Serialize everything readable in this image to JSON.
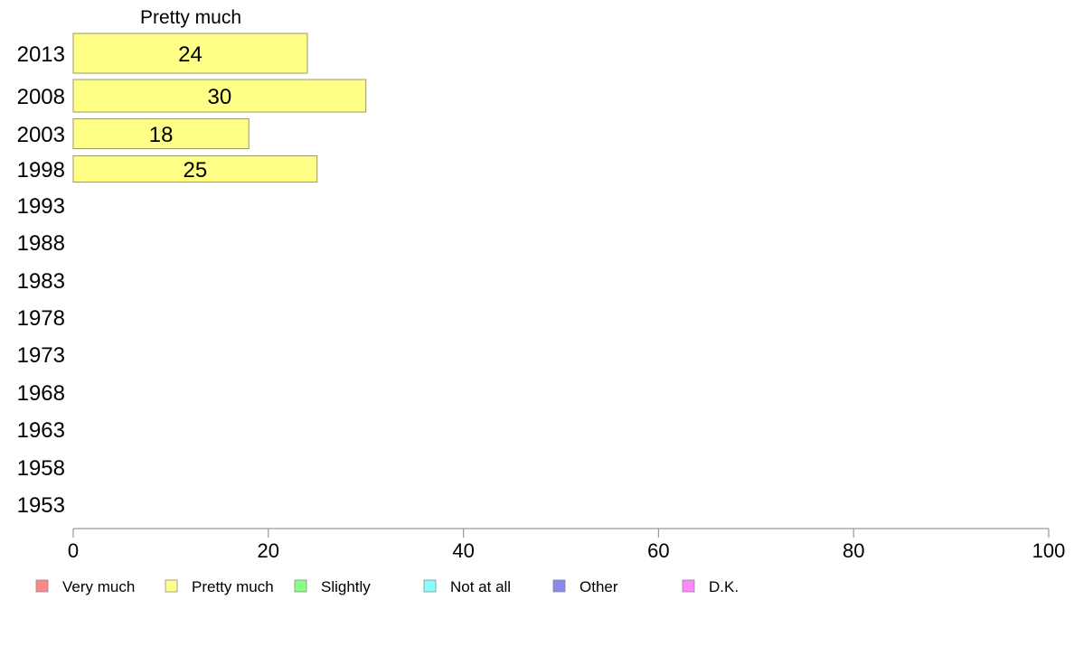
{
  "chart_data": {
    "type": "bar",
    "orientation": "horizontal",
    "title": "",
    "xlabel": "",
    "ylabel": "",
    "xlim": [
      0,
      100
    ],
    "x_ticks": [
      "0",
      "20",
      "40",
      "60",
      "80",
      "100"
    ],
    "grid": false,
    "legend_position": "bottom",
    "categories": [
      "2013",
      "2008",
      "2003",
      "1998",
      "1993",
      "1988",
      "1983",
      "1978",
      "1973",
      "1968",
      "1963",
      "1958",
      "1953"
    ],
    "shown_series_label": "Pretty much",
    "series": [
      {
        "name": "Pretty much",
        "color": "#ffff88",
        "values": [
          24,
          30,
          18,
          25,
          null,
          null,
          null,
          null,
          null,
          null,
          null,
          null,
          null
        ]
      }
    ],
    "legend": [
      {
        "label": "Very much",
        "color": "#ff8888"
      },
      {
        "label": "Pretty much",
        "color": "#ffff88"
      },
      {
        "label": "Slightly",
        "color": "#88ff88"
      },
      {
        "label": "Not at all",
        "color": "#88ffff"
      },
      {
        "label": "Other",
        "color": "#8888ee"
      },
      {
        "label": "D.K.",
        "color": "#ff88ff"
      }
    ]
  }
}
